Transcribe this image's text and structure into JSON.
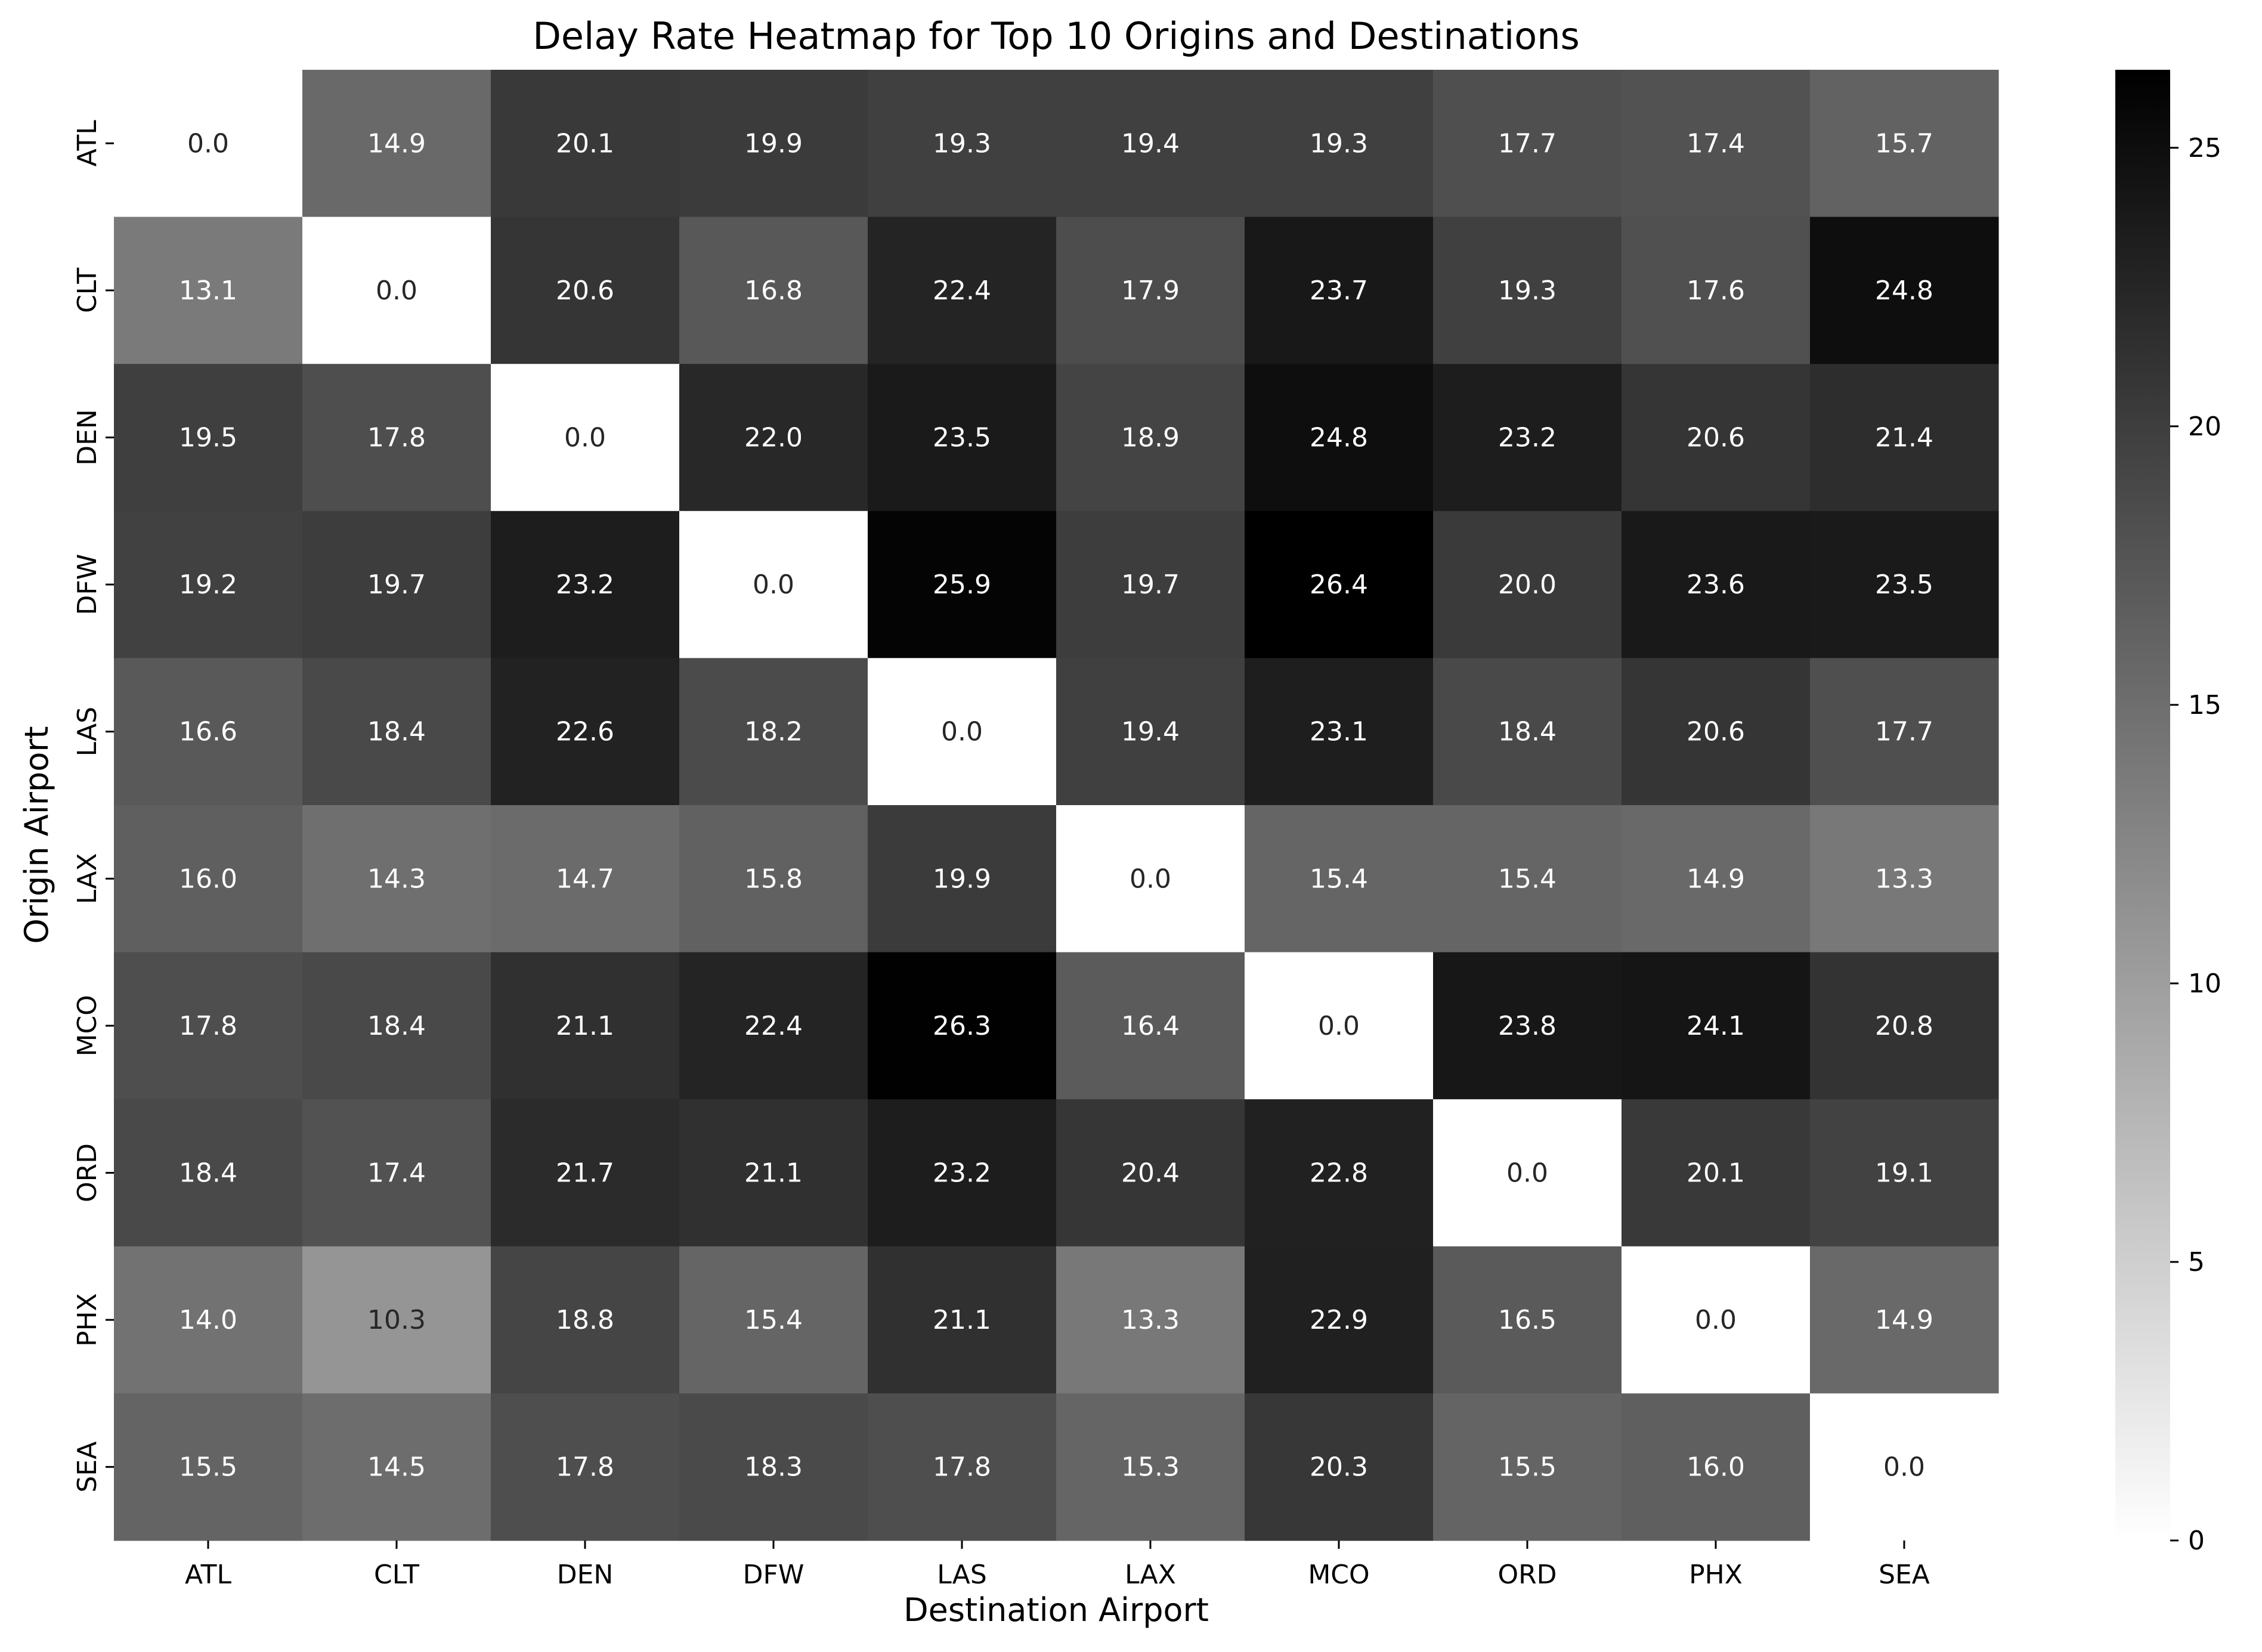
{
  "chart_data": {
    "type": "heatmap",
    "title": "Delay Rate Heatmap for Top 10 Origins and Destinations",
    "xlabel": "Destination Airport",
    "ylabel": "Origin Airport",
    "x_categories": [
      "ATL",
      "CLT",
      "DEN",
      "DFW",
      "LAS",
      "LAX",
      "MCO",
      "ORD",
      "PHX",
      "SEA"
    ],
    "y_categories": [
      "ATL",
      "CLT",
      "DEN",
      "DFW",
      "LAS",
      "LAX",
      "MCO",
      "ORD",
      "PHX",
      "SEA"
    ],
    "values": [
      [
        0.0,
        14.9,
        20.1,
        19.9,
        19.3,
        19.4,
        19.3,
        17.7,
        17.4,
        15.7
      ],
      [
        13.1,
        0.0,
        20.6,
        16.8,
        22.4,
        17.9,
        23.7,
        19.3,
        17.6,
        24.8
      ],
      [
        19.5,
        17.8,
        0.0,
        22.0,
        23.5,
        18.9,
        24.8,
        23.2,
        20.6,
        21.4
      ],
      [
        19.2,
        19.7,
        23.2,
        0.0,
        25.9,
        19.7,
        26.4,
        20.0,
        23.6,
        23.5
      ],
      [
        16.6,
        18.4,
        22.6,
        18.2,
        0.0,
        19.4,
        23.1,
        18.4,
        20.6,
        17.7
      ],
      [
        16.0,
        14.3,
        14.7,
        15.8,
        19.9,
        0.0,
        15.4,
        15.4,
        14.9,
        13.3
      ],
      [
        17.8,
        18.4,
        21.1,
        22.4,
        26.3,
        16.4,
        0.0,
        23.8,
        24.1,
        20.8
      ],
      [
        18.4,
        17.4,
        21.7,
        21.1,
        23.2,
        20.4,
        22.8,
        0.0,
        20.1,
        19.1
      ],
      [
        14.0,
        10.3,
        18.8,
        15.4,
        21.1,
        13.3,
        22.9,
        16.5,
        0.0,
        14.9
      ],
      [
        15.5,
        14.5,
        17.8,
        18.3,
        17.8,
        15.3,
        20.3,
        15.5,
        16.0,
        0.0
      ]
    ],
    "colorbar": {
      "min": 0,
      "max": 26.4,
      "ticks": [
        0,
        5,
        10,
        15,
        20,
        25
      ],
      "colormap": "Greys",
      "low_color": "#ffffff",
      "high_color": "#000000"
    },
    "annotations": "cell values shown with one decimal",
    "grid": false
  }
}
